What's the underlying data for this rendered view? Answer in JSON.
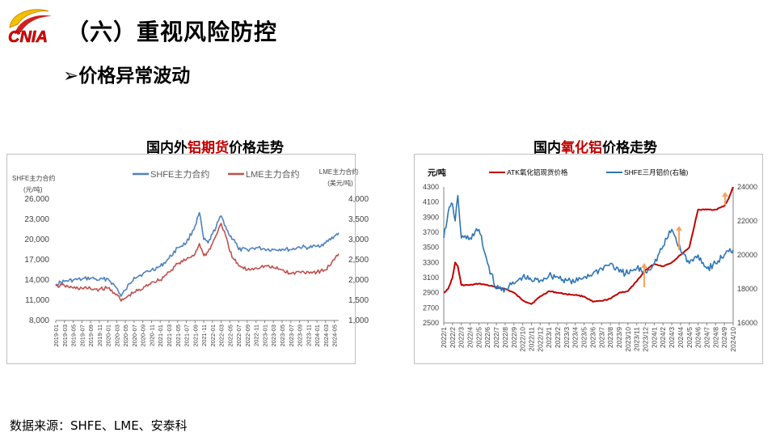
{
  "header": {
    "logo_text": "CNIA",
    "title": "（六）重视风险防控",
    "subtitle_marker": "➢",
    "subtitle": "价格异常波动"
  },
  "left_chart_title": {
    "pre": "国内外",
    "highlight": "铝期货",
    "post": "价格走势"
  },
  "right_chart_title": {
    "pre": "国内",
    "highlight": "氧化铝",
    "post": "价格走势"
  },
  "footer": {
    "source": "数据来源：SHFE、LME、安泰科"
  },
  "colors": {
    "shfe": "#4f81bd",
    "lme": "#c0504d",
    "atk": "#c00000",
    "shfe3m": "#2e75b6",
    "arrow": "#f4a460",
    "highlight": "#c00000"
  },
  "chart_data": [
    {
      "type": "line",
      "title": "国内外铝期货价格走势",
      "ylabel": "SHFE主力合约",
      "ylabel_unit": "(元/吨)",
      "y2label": "LME主力合约",
      "y2label_unit": "(美元/吨)",
      "ylim": [
        8000,
        26000
      ],
      "yticks": [
        "8,000",
        "11,000",
        "14,000",
        "17,000",
        "20,000",
        "23,000",
        "26,000"
      ],
      "y2lim": [
        1000,
        4000
      ],
      "y2ticks": [
        "1,000",
        "1,500",
        "2,000",
        "2,500",
        "3,000",
        "3,500",
        "4,000"
      ],
      "legend_position": "top",
      "grid": false,
      "xticks": [
        "2019-01",
        "2019-03",
        "2019-05",
        "2019-07",
        "2019-09",
        "2019-11",
        "2020-01",
        "2020-03",
        "2020-05",
        "2020-07",
        "2020-09",
        "2020-11",
        "2021-01",
        "2021-03",
        "2021-05",
        "2021-07",
        "2021-09",
        "2021-11",
        "2022-01",
        "2022-03",
        "2022-05",
        "2022-07",
        "2022-09",
        "2022-11",
        "2023-01",
        "2023-03",
        "2023-05",
        "2023-07",
        "2023-09",
        "2023-11",
        "2024-01",
        "2024-03",
        "2024-05"
      ],
      "x": [
        "2019-01",
        "2019-03",
        "2019-05",
        "2019-07",
        "2019-09",
        "2019-11",
        "2020-01",
        "2020-03",
        "2020-04",
        "2020-05",
        "2020-07",
        "2020-09",
        "2020-11",
        "2021-01",
        "2021-03",
        "2021-05",
        "2021-07",
        "2021-09",
        "2021-10",
        "2021-11",
        "2021-12",
        "2022-01",
        "2022-03",
        "2022-04",
        "2022-05",
        "2022-06",
        "2022-07",
        "2022-09",
        "2022-11",
        "2023-01",
        "2023-03",
        "2023-05",
        "2023-07",
        "2023-09",
        "2023-11",
        "2024-01",
        "2024-03",
        "2024-05",
        "2024-06"
      ],
      "series": [
        {
          "name": "SHFE主力合约",
          "axis": "left",
          "values": [
            13400,
            13800,
            14000,
            14100,
            14300,
            14000,
            14200,
            12800,
            11600,
            12500,
            14400,
            14900,
            15500,
            16000,
            17200,
            18800,
            19500,
            22000,
            24000,
            20000,
            19500,
            20800,
            23500,
            22000,
            20500,
            20000,
            18500,
            18500,
            18800,
            18600,
            18500,
            18600,
            18500,
            18900,
            18800,
            19000,
            19500,
            20500,
            21000
          ]
        },
        {
          "name": "LME主力合约",
          "axis": "right",
          "values": [
            1850,
            1860,
            1800,
            1800,
            1780,
            1770,
            1800,
            1650,
            1480,
            1550,
            1700,
            1780,
            1950,
            2000,
            2200,
            2400,
            2500,
            2650,
            2900,
            2600,
            2700,
            2900,
            3400,
            3100,
            2700,
            2500,
            2350,
            2250,
            2300,
            2350,
            2300,
            2250,
            2150,
            2200,
            2200,
            2200,
            2250,
            2500,
            2650
          ]
        }
      ]
    },
    {
      "type": "line",
      "title": "国内氧化铝价格走势",
      "ylabel": "元/吨",
      "ylim": [
        2500,
        4300
      ],
      "yticks": [
        "2500",
        "2700",
        "2900",
        "3100",
        "3300",
        "3500",
        "3700",
        "3900",
        "4100",
        "4300"
      ],
      "y2lim": [
        16000,
        24000
      ],
      "y2ticks": [
        "16000",
        "18000",
        "20000",
        "22000",
        "24000"
      ],
      "legend_position": "top",
      "grid": false,
      "xticks": [
        "2022/1",
        "2022/2",
        "2022/3",
        "2022/4",
        "2022/5",
        "2022/6",
        "2022/7",
        "2022/8",
        "2022/9",
        "2022/10",
        "2022/11",
        "2022/12",
        "2023/1",
        "2023/2",
        "2023/3",
        "2023/4",
        "2023/5",
        "2023/6",
        "2023/7",
        "2023/8",
        "2023/9",
        "2023/10",
        "2023/11",
        "2023/12",
        "2024/1",
        "2024/2",
        "2024/3",
        "2024/4",
        "2024/5",
        "2024/6",
        "2024/7",
        "2024/8",
        "2024/9",
        "2024/10"
      ],
      "x": [
        1,
        1.5,
        2,
        2.3,
        2.6,
        3,
        4,
        5,
        6,
        7,
        8,
        9,
        10,
        11,
        12,
        13,
        14,
        15,
        16,
        17,
        18,
        19,
        20,
        21,
        22,
        23,
        24,
        25,
        26,
        27,
        28,
        29,
        30,
        31,
        32,
        33,
        33.5,
        34
      ],
      "series": [
        {
          "name": "ATK氧化铝现货价格",
          "axis": "left",
          "values": [
            2900,
            2950,
            3100,
            3300,
            3250,
            3000,
            3000,
            3020,
            3000,
            2970,
            2950,
            2900,
            2800,
            2750,
            2850,
            2920,
            2900,
            2880,
            2870,
            2850,
            2780,
            2790,
            2820,
            2900,
            2920,
            3050,
            3200,
            3280,
            3250,
            3300,
            3400,
            3500,
            4000,
            4000,
            4000,
            4050,
            4150,
            4300
          ]
        },
        {
          "name": "SHFE三月铝价(右轴)",
          "axis": "right",
          "values": [
            21000,
            22500,
            23000,
            22000,
            23500,
            21000,
            21000,
            21500,
            19500,
            18000,
            18000,
            18300,
            18700,
            18500,
            18500,
            18800,
            18700,
            18500,
            18400,
            18700,
            18900,
            19200,
            19500,
            19000,
            18900,
            19200,
            19000,
            19500,
            20500,
            21500,
            20300,
            19500,
            20000,
            19200,
            19500,
            20000,
            20200,
            20300
          ]
        }
      ],
      "annotations": [
        "arrow-2023/11",
        "arrow-2024/5",
        "arrow-2024/10"
      ]
    }
  ]
}
